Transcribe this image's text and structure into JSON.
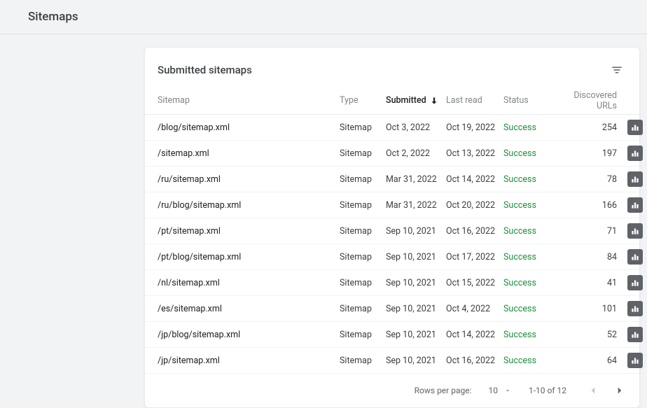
{
  "page_title": "Sitemaps",
  "card": {
    "title": "Submitted sitemaps",
    "columns": {
      "sitemap": "Sitemap",
      "type": "Type",
      "submitted": "Submitted",
      "last_read": "Last read",
      "status": "Status",
      "discovered_urls": "Discovered URLs"
    },
    "sorted_column": "submitted",
    "sort_direction": "desc",
    "status_color": "#1e8e3e",
    "rows": [
      {
        "sitemap": "/blog/sitemap.xml",
        "type": "Sitemap",
        "submitted": "Oct 3, 2022",
        "last_read": "Oct 19, 2022",
        "status": "Success",
        "urls": 254
      },
      {
        "sitemap": "/sitemap.xml",
        "type": "Sitemap",
        "submitted": "Oct 2, 2022",
        "last_read": "Oct 13, 2022",
        "status": "Success",
        "urls": 197
      },
      {
        "sitemap": "/ru/sitemap.xml",
        "type": "Sitemap",
        "submitted": "Mar 31, 2022",
        "last_read": "Oct 14, 2022",
        "status": "Success",
        "urls": 78
      },
      {
        "sitemap": "/ru/blog/sitemap.xml",
        "type": "Sitemap",
        "submitted": "Mar 31, 2022",
        "last_read": "Oct 20, 2022",
        "status": "Success",
        "urls": 166
      },
      {
        "sitemap": "/pt/sitemap.xml",
        "type": "Sitemap",
        "submitted": "Sep 10, 2021",
        "last_read": "Oct 16, 2022",
        "status": "Success",
        "urls": 71
      },
      {
        "sitemap": "/pt/blog/sitemap.xml",
        "type": "Sitemap",
        "submitted": "Sep 10, 2021",
        "last_read": "Oct 17, 2022",
        "status": "Success",
        "urls": 84
      },
      {
        "sitemap": "/nl/sitemap.xml",
        "type": "Sitemap",
        "submitted": "Sep 10, 2021",
        "last_read": "Oct 15, 2022",
        "status": "Success",
        "urls": 41
      },
      {
        "sitemap": "/es/sitemap.xml",
        "type": "Sitemap",
        "submitted": "Sep 10, 2021",
        "last_read": "Oct 4, 2022",
        "status": "Success",
        "urls": 101
      },
      {
        "sitemap": "/jp/blog/sitemap.xml",
        "type": "Sitemap",
        "submitted": "Sep 10, 2021",
        "last_read": "Oct 14, 2022",
        "status": "Success",
        "urls": 52
      },
      {
        "sitemap": "/jp/sitemap.xml",
        "type": "Sitemap",
        "submitted": "Sep 10, 2021",
        "last_read": "Oct 16, 2022",
        "status": "Success",
        "urls": 64
      }
    ]
  },
  "pagination": {
    "rows_per_page_label": "Rows per page:",
    "rows_per_page_value": "10",
    "range": "1-10 of 12",
    "prev_disabled": true,
    "next_disabled": false
  }
}
